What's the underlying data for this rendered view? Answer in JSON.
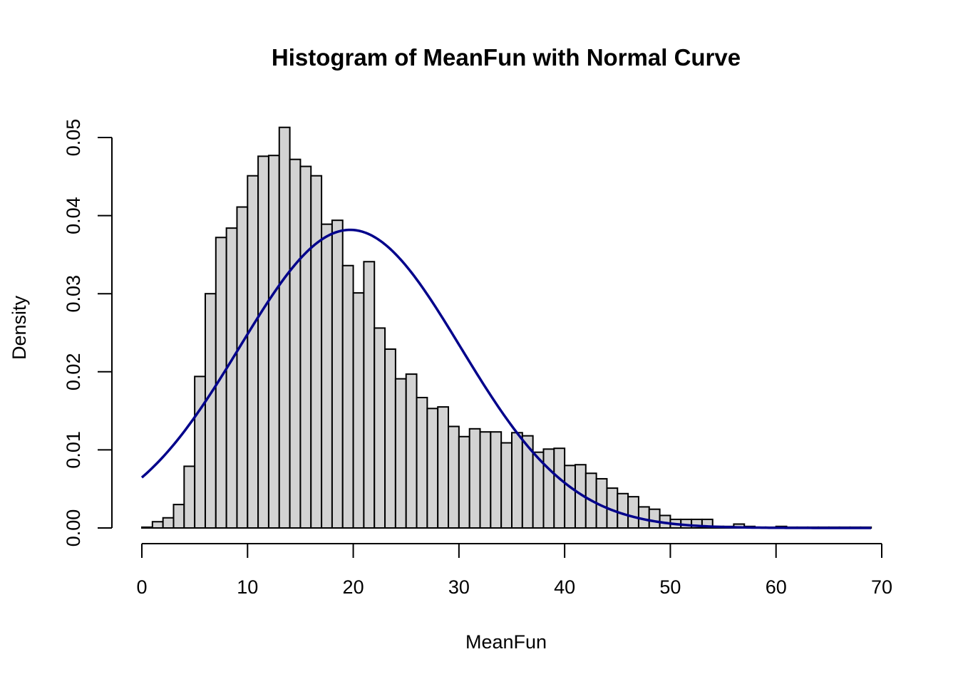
{
  "chart_data": {
    "type": "bar",
    "title": "Histogram of MeanFun with Normal Curve",
    "xlabel": "MeanFun",
    "ylabel": "Density",
    "xlim": [
      0,
      70
    ],
    "ylim": [
      0,
      0.05
    ],
    "x_ticks": [
      "0",
      "10",
      "20",
      "30",
      "40",
      "50",
      "60",
      "70"
    ],
    "y_ticks": [
      "0.00",
      "0.01",
      "0.02",
      "0.03",
      "0.04",
      "0.05"
    ],
    "grid": false,
    "bar_color": "#d3d3d3",
    "bins": {
      "start": 0,
      "width": 1,
      "values": [
        0.0001,
        0.0008,
        0.0013,
        0.003,
        0.0079,
        0.0194,
        0.03,
        0.0372,
        0.0384,
        0.0411,
        0.0451,
        0.0476,
        0.0477,
        0.0513,
        0.0472,
        0.0463,
        0.0451,
        0.0389,
        0.0394,
        0.0336,
        0.0301,
        0.0341,
        0.0256,
        0.0229,
        0.0191,
        0.0197,
        0.0167,
        0.0153,
        0.0155,
        0.013,
        0.0117,
        0.0127,
        0.0123,
        0.0123,
        0.0109,
        0.0122,
        0.0118,
        0.0097,
        0.0101,
        0.0102,
        0.008,
        0.0081,
        0.007,
        0.0063,
        0.0051,
        0.0044,
        0.004,
        0.0027,
        0.0024,
        0.0016,
        0.0011,
        0.0011,
        0.0011,
        0.0011,
        0.0002,
        0.0002,
        0.0005,
        0.0002,
        0.0001,
        0.0001,
        0.0002,
        0.0001,
        0.0001,
        0.0001,
        0.0001,
        0.0001,
        0.0001,
        0.0001,
        0.0001
      ]
    },
    "normal_curve": {
      "color": "#00008b",
      "mean": 19.7,
      "sd": 10.45,
      "x_range": [
        0,
        69
      ]
    }
  }
}
